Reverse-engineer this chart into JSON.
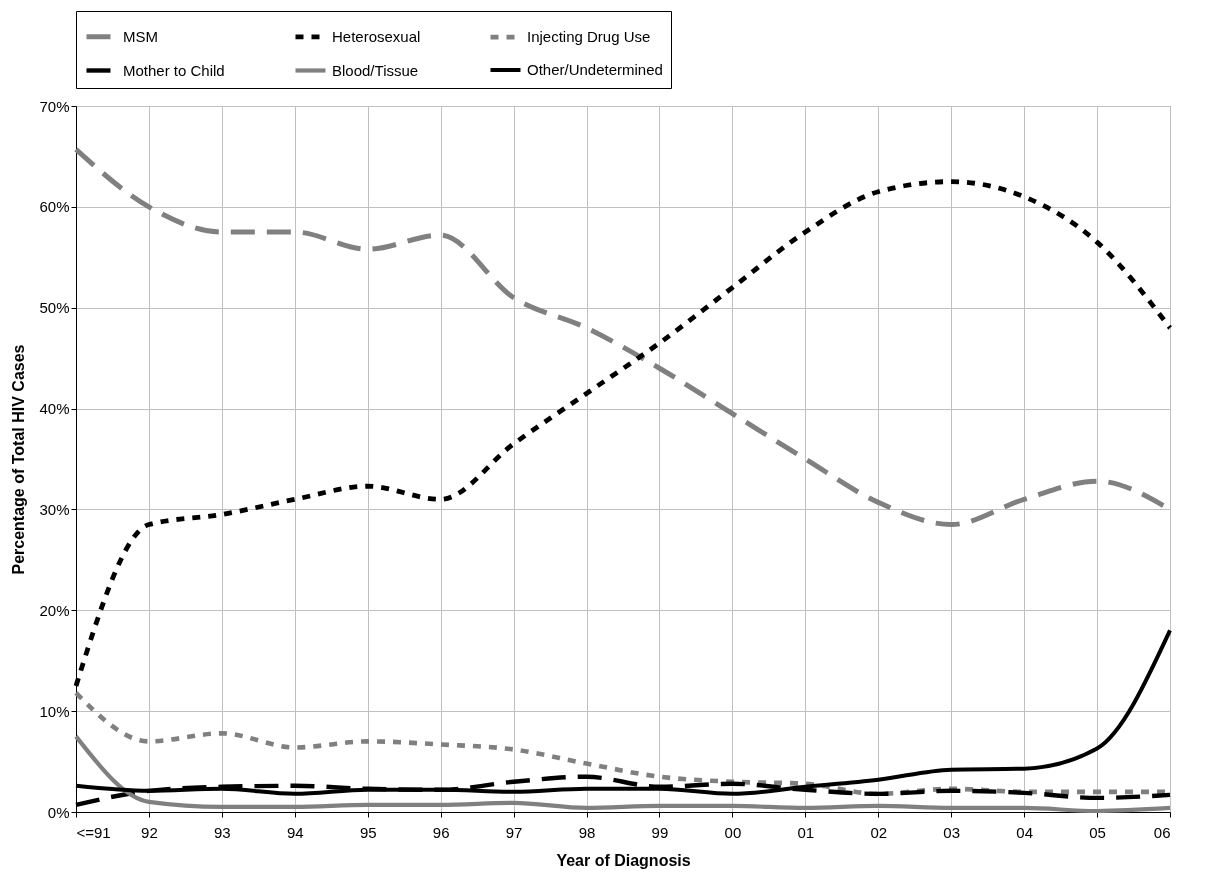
{
  "chart_data": {
    "type": "line",
    "xlabel": "Year of Diagnosis",
    "ylabel": "Percentage of Total HIV Cases",
    "categories": [
      "<=91",
      "92",
      "93",
      "94",
      "95",
      "96",
      "97",
      "98",
      "99",
      "00",
      "01",
      "02",
      "03",
      "04",
      "05",
      "06"
    ],
    "ylim": [
      0,
      70
    ],
    "yticks": [
      {
        "value": 0,
        "label": "0%"
      },
      {
        "value": 10,
        "label": "10%"
      },
      {
        "value": 20,
        "label": "20%"
      },
      {
        "value": 30,
        "label": "30%"
      },
      {
        "value": 40,
        "label": "40%"
      },
      {
        "value": 50,
        "label": "50%"
      },
      {
        "value": 60,
        "label": "60%"
      },
      {
        "value": 70,
        "label": "70%"
      }
    ],
    "grid": true,
    "legend": "top",
    "marker": "none",
    "series": [
      {
        "name": "MSM",
        "color": "#808080",
        "line_style": "dashed",
        "values": [
          65.7,
          60,
          57.5,
          57.5,
          55.8,
          57.2,
          51,
          48,
          44,
          39.5,
          35,
          30.7,
          28.5,
          31,
          32.8,
          30
        ]
      },
      {
        "name": "Heterosexual",
        "color": "#000000",
        "line_style": "dotted",
        "values": [
          12.5,
          28.5,
          29.5,
          31,
          32.3,
          31,
          36.5,
          41.5,
          46.5,
          52,
          57.5,
          61.5,
          62.5,
          61,
          56.5,
          48
        ]
      },
      {
        "name": "Injecting Drug Use",
        "color": "#808080",
        "line_style": "dotted",
        "values": [
          11.8,
          7,
          7.8,
          6.4,
          7,
          6.7,
          6.2,
          4.8,
          3.5,
          3,
          2.8,
          1.8,
          2.3,
          2,
          2,
          2
        ]
      },
      {
        "name": "Mother to Child",
        "color": "#000000",
        "line_style": "dashed",
        "values": [
          0.7,
          2.1,
          2.5,
          2.6,
          2.3,
          2.2,
          3,
          3.5,
          2.5,
          2.8,
          2.2,
          1.8,
          2.1,
          1.9,
          1.4,
          1.7
        ]
      },
      {
        "name": "Blood/Tissue",
        "color": "#808080",
        "line_style": "solid",
        "values": [
          7.5,
          1,
          0.5,
          0.5,
          0.7,
          0.7,
          0.9,
          0.4,
          0.6,
          0.6,
          0.4,
          0.6,
          0.4,
          0.4,
          0.1,
          0.4
        ]
      },
      {
        "name": "Other/Undetermined",
        "color": "#000000",
        "line_style": "solid",
        "values": [
          2.6,
          2.1,
          2.3,
          1.8,
          2.2,
          2.2,
          2,
          2.3,
          2.3,
          1.8,
          2.5,
          3.2,
          4.2,
          4.3,
          6.3,
          18
        ]
      }
    ]
  }
}
